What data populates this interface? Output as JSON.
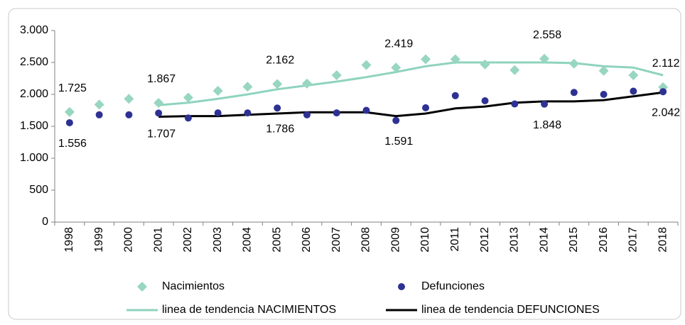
{
  "chart_data": {
    "type": "scatter-trend",
    "categories": [
      "1998",
      "1999",
      "2000",
      "2001",
      "2002",
      "2003",
      "2004",
      "2005",
      "2006",
      "2007",
      "2008",
      "2009",
      "2010",
      "2011",
      "2012",
      "2013",
      "2014",
      "2015",
      "2016",
      "2017",
      "2018"
    ],
    "ylim": [
      0,
      3000
    ],
    "yticks": [
      0,
      500,
      {
        "value": 1000,
        "label": "1.000"
      },
      {
        "value": 1500,
        "label": "1.500"
      },
      {
        "value": 2000,
        "label": "2.000"
      },
      {
        "value": 2500,
        "label": "2.500"
      },
      {
        "value": 3000,
        "label": "3.000"
      }
    ],
    "grid": false,
    "legend": "bottom",
    "series": [
      {
        "name": "Nacimientos",
        "color": "#98d6c0",
        "marker": "diamond",
        "values": [
          1725,
          1840,
          1930,
          1867,
          1950,
          2055,
          2120,
          2162,
          2170,
          2300,
          2460,
          2419,
          2550,
          2550,
          2470,
          2380,
          2558,
          2480,
          2370,
          2300,
          2112
        ],
        "value_labels": [
          "1.725",
          null,
          null,
          "1.867",
          null,
          null,
          null,
          "2.162",
          null,
          null,
          null,
          "2.419",
          null,
          null,
          null,
          null,
          "2.558",
          null,
          null,
          null,
          "2.112"
        ]
      },
      {
        "name": "Defunciones",
        "color": "#2e3192",
        "marker": "circle",
        "values": [
          1556,
          1680,
          1680,
          1707,
          1630,
          1710,
          1710,
          1786,
          1680,
          1710,
          1750,
          1591,
          1790,
          1980,
          1900,
          1850,
          1848,
          2030,
          2000,
          2050,
          2042
        ],
        "value_labels": [
          "1.556",
          null,
          null,
          "1.707",
          null,
          null,
          null,
          "1.786",
          null,
          null,
          null,
          "1.591",
          null,
          null,
          null,
          null,
          "1.848",
          null,
          null,
          null,
          "2.042"
        ]
      },
      {
        "name": "linea de tendencia NACIMIENTOS",
        "color": "#8fd3bf",
        "marker": "line",
        "values": [
          null,
          null,
          null,
          1830,
          1870,
          1930,
          2000,
          2080,
          2140,
          2200,
          2270,
          2350,
          2440,
          2500,
          2500,
          2500,
          2500,
          2490,
          2440,
          2420,
          2300
        ]
      },
      {
        "name": "linea de tendencia DEFUNCIONES",
        "color": "#000000",
        "marker": "line",
        "values": [
          null,
          null,
          null,
          1650,
          1660,
          1660,
          1680,
          1700,
          1720,
          1720,
          1720,
          1660,
          1700,
          1780,
          1810,
          1870,
          1890,
          1890,
          1910,
          1970,
          2030
        ]
      }
    ]
  }
}
